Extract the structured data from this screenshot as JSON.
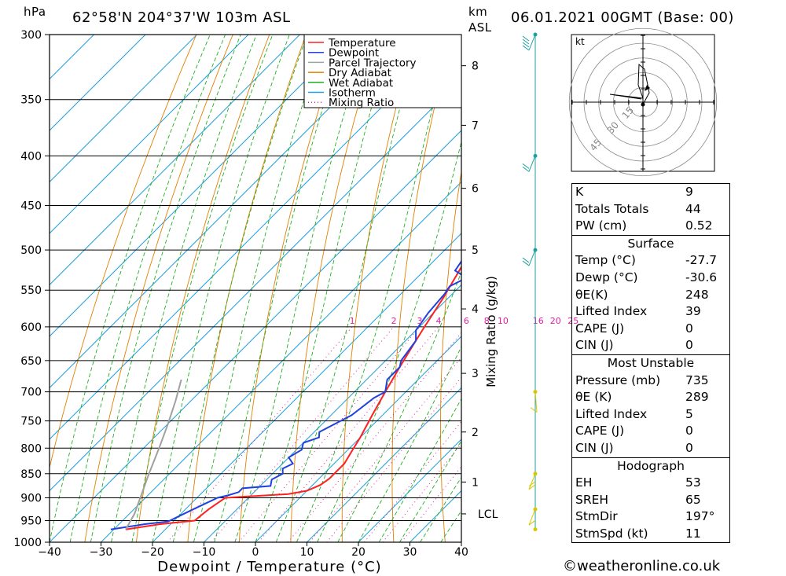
{
  "header": {
    "pressure_unit": "hPa",
    "location": "62°58'N  204°37'W  103m  ASL",
    "height_unit_line1": "km",
    "height_unit_line2": "ASL",
    "datetime": "06.01.2021  00GMT  (Base: 00)"
  },
  "chart_data": {
    "type": "line",
    "title": "62°58'N  204°37'W  103m  ASL",
    "xlabel": "Dewpoint / Temperature (°C)",
    "ylabel": "hPa",
    "secondary_ylabel": "Mixing Ratio (g/kg)",
    "xlim": [
      -40,
      40
    ],
    "ylim": [
      1000,
      300
    ],
    "y_scale": "log",
    "grid": true,
    "legend_position": "top-right",
    "x_ticks": [
      -40,
      -30,
      -20,
      -10,
      0,
      10,
      20,
      30,
      40
    ],
    "pressure_ticks": [
      300,
      350,
      400,
      450,
      500,
      550,
      600,
      650,
      700,
      750,
      800,
      850,
      900,
      950,
      1000
    ],
    "height_ticks": [
      {
        "label": "8",
        "p": 323
      },
      {
        "label": "7",
        "p": 372
      },
      {
        "label": "6",
        "p": 432
      },
      {
        "label": "5",
        "p": 500
      },
      {
        "label": "4",
        "p": 575
      },
      {
        "label": "3",
        "p": 670
      },
      {
        "label": "2",
        "p": 770
      },
      {
        "label": "1",
        "p": 867
      },
      {
        "label": "LCL",
        "p": 935
      }
    ],
    "mixing_ratio_labels": [
      "1",
      "2",
      "3",
      "4",
      "6",
      "8",
      "10",
      "16",
      "20",
      "25"
    ],
    "legend": [
      {
        "name": "Temperature",
        "color": "#ff2020"
      },
      {
        "name": "Dewpoint",
        "color": "#2040e0"
      },
      {
        "name": "Parcel Trajectory",
        "color": "#a0a0a0"
      },
      {
        "name": "Dry Adiabat",
        "color": "#e08000"
      },
      {
        "name": "Wet Adiabat",
        "color": "#20b020"
      },
      {
        "name": "Isotherm",
        "color": "#20a0e0"
      },
      {
        "name": "Mixing Ratio",
        "color": "#e020a0"
      }
    ],
    "series": [
      {
        "name": "Temperature",
        "color": "#ff2020",
        "points": [
          [
            -27.7,
            970
          ],
          [
            -22,
            958
          ],
          [
            -16,
            950
          ],
          [
            -15.5,
            925
          ],
          [
            -14.5,
            900
          ],
          [
            -3,
            892
          ],
          [
            0,
            885
          ],
          [
            1.5,
            873
          ],
          [
            2,
            860
          ],
          [
            2,
            830
          ],
          [
            1,
            805
          ],
          [
            0,
            780
          ],
          [
            -2,
            740
          ],
          [
            -4,
            700
          ],
          [
            -6,
            660
          ],
          [
            -8,
            620
          ],
          [
            -9,
            600
          ],
          [
            -11,
            560
          ],
          [
            -13.5,
            520
          ],
          [
            -15.5,
            480
          ],
          [
            -17.5,
            450
          ],
          [
            -19,
            420
          ],
          [
            -21,
            400
          ],
          [
            -22,
            380
          ],
          [
            -23.5,
            350
          ],
          [
            -25,
            325
          ],
          [
            -27,
            300
          ]
        ]
      },
      {
        "name": "Dewpoint",
        "color": "#2040e0",
        "points": [
          [
            -30.6,
            970
          ],
          [
            -25,
            958
          ],
          [
            -21,
            952
          ],
          [
            -18.5,
            925
          ],
          [
            -16,
            900
          ],
          [
            -14.5,
            895
          ],
          [
            -13,
            888
          ],
          [
            -13,
            880
          ],
          [
            -8,
            875
          ],
          [
            -9,
            862
          ],
          [
            -8,
            850
          ],
          [
            -9,
            840
          ],
          [
            -8,
            830
          ],
          [
            -10,
            818
          ],
          [
            -9,
            803
          ],
          [
            -10,
            790
          ],
          [
            -8,
            780
          ],
          [
            -9,
            770
          ],
          [
            -6,
            740
          ],
          [
            -5,
            710
          ],
          [
            -4,
            700
          ],
          [
            -6,
            680
          ],
          [
            -6,
            660
          ],
          [
            -7,
            650
          ],
          [
            -8,
            620
          ],
          [
            -10,
            605
          ],
          [
            -11,
            580
          ],
          [
            -11.5,
            555
          ],
          [
            -12,
            545
          ],
          [
            -10.5,
            535
          ],
          [
            -12,
            530
          ],
          [
            -14,
            525
          ],
          [
            -15,
            505
          ],
          [
            -15.5,
            490
          ],
          [
            -16,
            480
          ],
          [
            -16.5,
            460
          ],
          [
            -17.5,
            440
          ],
          [
            -18,
            425
          ],
          [
            -19,
            410
          ],
          [
            -20.5,
            395
          ],
          [
            -21,
            380
          ],
          [
            -20,
            365
          ],
          [
            -20.5,
            355
          ],
          [
            -20,
            345
          ],
          [
            -21,
            340
          ],
          [
            -21,
            335
          ],
          [
            -22,
            325
          ],
          [
            -21.5,
            320
          ],
          [
            -22,
            305
          ],
          [
            -22,
            300
          ]
        ]
      },
      {
        "name": "Parcel Trajectory",
        "color": "#a0a0a0",
        "points": [
          [
            -27.7,
            970
          ],
          [
            -29,
            935
          ],
          [
            -31,
            900
          ],
          [
            -34,
            850
          ],
          [
            -37,
            800
          ],
          [
            -40,
            755
          ],
          [
            -43,
            715
          ],
          [
            -46,
            680
          ]
        ]
      }
    ],
    "wind_profile": [
      {
        "p": 300,
        "dir": 250,
        "speed_kt": 35
      },
      {
        "p": 400,
        "dir": 270,
        "speed_kt": 20
      },
      {
        "p": 500,
        "dir": 250,
        "speed_kt": 15
      },
      {
        "p": 700,
        "dir": 350,
        "speed_kt": 5
      },
      {
        "p": 850,
        "dir": 270,
        "speed_kt": 20
      },
      {
        "p": 925,
        "dir": 260,
        "speed_kt": 10
      },
      {
        "p": 970,
        "dir": 180,
        "speed_kt": 2
      }
    ],
    "hodograph": {
      "unit": "kt",
      "rings": [
        "15",
        "30",
        "45"
      ]
    }
  },
  "indices": {
    "rows": [
      {
        "label": "K",
        "value": "9"
      },
      {
        "label": "Totals Totals",
        "value": "44"
      },
      {
        "label": "PW (cm)",
        "value": "0.52"
      }
    ]
  },
  "surface": {
    "title": "Surface",
    "rows": [
      {
        "label": "Temp (°C)",
        "value": "-27.7"
      },
      {
        "label": "Dewp (°C)",
        "value": "-30.6"
      },
      {
        "label": "θE(K)",
        "value": "248"
      },
      {
        "label": "Lifted Index",
        "value": "39"
      },
      {
        "label": "CAPE (J)",
        "value": "0"
      },
      {
        "label": "CIN (J)",
        "value": "0"
      }
    ]
  },
  "most_unstable": {
    "title": "Most Unstable",
    "rows": [
      {
        "label": "Pressure (mb)",
        "value": "735"
      },
      {
        "label": "θE (K)",
        "value": "289"
      },
      {
        "label": "Lifted Index",
        "value": "5"
      },
      {
        "label": "CAPE (J)",
        "value": "0"
      },
      {
        "label": "CIN (J)",
        "value": "0"
      }
    ]
  },
  "hodograph_table": {
    "title": "Hodograph",
    "rows": [
      {
        "label": "EH",
        "value": "53"
      },
      {
        "label": "SREH",
        "value": "65"
      },
      {
        "label": "StmDir",
        "value": "197°"
      },
      {
        "label": "StmSpd (kt)",
        "value": "11"
      }
    ]
  },
  "copyright": "©weatheronline.co.uk",
  "colors": {
    "temperature": "#ff2020",
    "dewpoint": "#2040e0",
    "parcel": "#a0a0a0",
    "dry_adiabat": "#e08000",
    "wet_adiabat": "#20b020",
    "isotherm": "#20a0e0",
    "mixing_ratio": "#e020a0",
    "wind_profile": "#20a0a0"
  }
}
